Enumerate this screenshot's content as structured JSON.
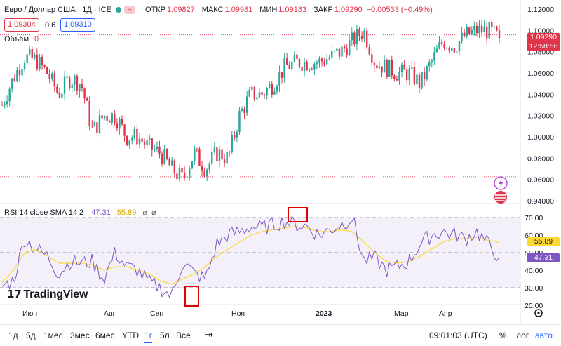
{
  "legend": {
    "title": "Евро / Доллар США · 1Д · ICE",
    "open_k": "ОТКР",
    "open_v": "1.09827",
    "high_k": "МАКС",
    "high_v": "1.09981",
    "low_k": "МИН",
    "low_v": "1.09183",
    "close_k": "ЗАКР",
    "close_v": "1.09290",
    "change": "−0.00533 (−0.49%)",
    "sell": "1.09304",
    "spread": "0.6",
    "buy": "1.09310",
    "volume_label": "Объём",
    "volume_value": "0"
  },
  "price_tag": {
    "price": "1.09290",
    "countdown": "12:58:56"
  },
  "rsi_legend": {
    "label": "RSI 14 close SMA 14 2",
    "rsi": "47.31",
    "sma": "55.89"
  },
  "rsi_tags": {
    "sma": "55.89",
    "rsi": "47.31"
  },
  "logo": "TradingView",
  "bottom": {
    "ranges": [
      "1д",
      "5д",
      "1мес",
      "3мес",
      "6мес",
      "YTD",
      "1г",
      "5л",
      "Все"
    ],
    "active": "1г",
    "time": "09:01:03 (UTC)",
    "pct": "%",
    "log": "лог",
    "auto": "авто"
  },
  "colors": {
    "up": "#26a69a",
    "down": "#e0344a",
    "rsi": "#7e57c2",
    "sma": "#fdd835",
    "accent": "#2962ff"
  },
  "chart_data": [
    {
      "type": "candlestick",
      "ylim": [
        0.93,
        1.125
      ],
      "yticks": [
        0.94,
        0.96,
        0.98,
        1.0,
        1.02,
        1.04,
        1.06,
        1.08,
        1.1,
        1.12
      ],
      "yticklabels": [
        "0.94000",
        "0.96000",
        "0.98000",
        "1.00000",
        "1.02000",
        "1.04000",
        "1.06000",
        "1.08000",
        "1.10000",
        "1.12000"
      ],
      "xticks": [
        "Июн",
        "Авг",
        "Сен",
        "Ноя",
        "2023",
        "Мар",
        "Апр"
      ],
      "close_path": [
        1.03,
        1.055,
        1.075,
        1.072,
        1.06,
        1.04,
        1.055,
        1.05,
        1.005,
        1.02,
        1.02,
        1.0,
        1.0,
        0.99,
        0.985,
        0.97,
        0.96,
        0.985,
        0.97,
        0.985,
        0.98,
        1.02,
        1.04,
        1.04,
        1.05,
        1.065,
        1.07,
        1.07,
        1.07,
        1.075,
        1.08,
        1.09,
        1.1,
        1.07,
        1.065,
        1.06,
        1.06,
        1.05,
        1.07,
        1.09,
        1.085,
        1.095,
        1.1,
        1.1,
        1.093
      ],
      "last_close": 1.0929,
      "hlines": [
        1.0958,
        0.9625
      ]
    },
    {
      "type": "line",
      "title": "RSI 14 close SMA 14 2",
      "ylim": [
        20,
        74
      ],
      "yticks": [
        20,
        30,
        40,
        50,
        60,
        70
      ],
      "yticklabels": [
        "20.00",
        "30.00",
        "40.00",
        "50.00",
        "60.00",
        "70.00"
      ],
      "bands": [
        30,
        50,
        70
      ],
      "series": [
        {
          "name": "RSI",
          "values": [
            31,
            34,
            58,
            52,
            48,
            38,
            45,
            44,
            45,
            35,
            50,
            42,
            40,
            33,
            30,
            25,
            45,
            38,
            35,
            55,
            60,
            62,
            65,
            64,
            66,
            68,
            66,
            65,
            60,
            63,
            66,
            70,
            45,
            47,
            40,
            42,
            45,
            55,
            60,
            62,
            60,
            58,
            62,
            55,
            47.31
          ]
        },
        {
          "name": "SMA",
          "values": [
            33,
            40,
            50,
            52,
            48,
            44,
            44,
            44,
            43,
            40,
            42,
            42,
            40,
            38,
            34,
            32,
            35,
            38,
            42,
            48,
            52,
            56,
            60,
            62,
            63,
            64,
            65,
            64,
            62,
            62,
            63,
            62,
            56,
            50,
            45,
            44,
            45,
            48,
            52,
            56,
            58,
            58,
            59,
            57,
            55.89
          ]
        }
      ]
    }
  ]
}
